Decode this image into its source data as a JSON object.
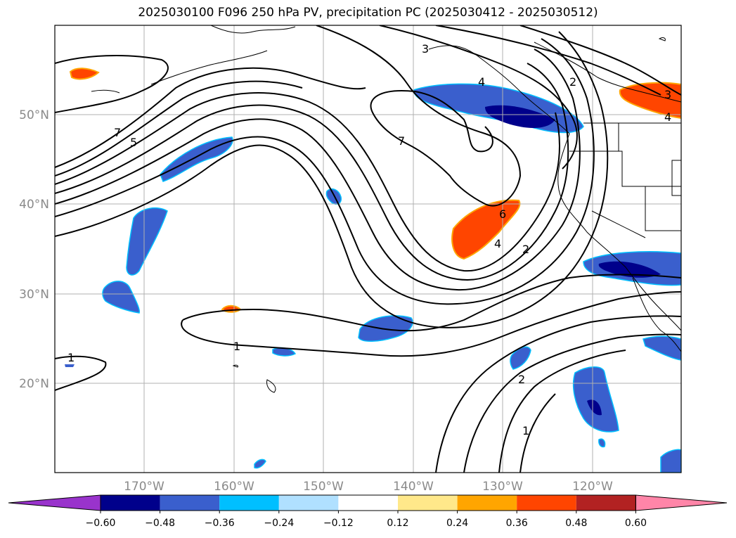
{
  "title": "2025030100 F096 250 hPa PV, precipitation PC (2025030412 - 2025030512)",
  "map": {
    "lon_labels": [
      "170°W",
      "160°W",
      "150°W",
      "140°W",
      "130°W",
      "120°W"
    ],
    "lat_labels": [
      "50°N",
      "40°N",
      "30°N",
      "20°N"
    ],
    "pv_contour_labels": [
      "7",
      "5",
      "3",
      "2",
      "4",
      "7",
      "6",
      "4",
      "2",
      "1",
      "1",
      "2",
      "1",
      "3",
      "4"
    ]
  },
  "colorbar": {
    "ticks": [
      "−0.60",
      "−0.48",
      "−0.36",
      "−0.24",
      "−0.12",
      "0.12",
      "0.24",
      "0.36",
      "0.48",
      "0.60"
    ],
    "colors": [
      "#9933cc",
      "#00008b",
      "#3a5fcd",
      "#00bfff",
      "#b0e0ff",
      "#ffffff",
      "#ffe88a",
      "#ffa500",
      "#ff4500",
      "#b22222",
      "#ff85a8"
    ]
  }
}
